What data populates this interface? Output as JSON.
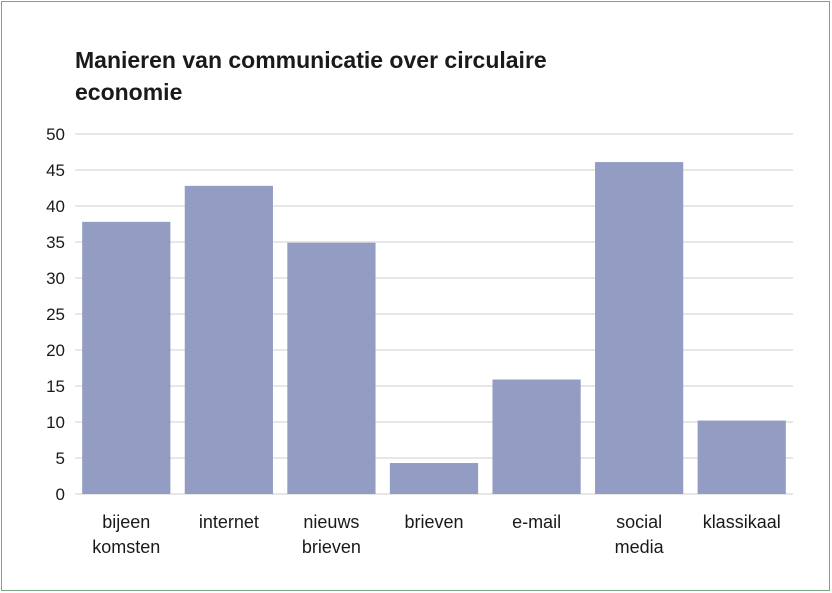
{
  "chart_data": {
    "type": "bar",
    "title": "Manieren van communicatie over circulaire economie",
    "xlabel": "",
    "ylabel": "",
    "ylim": [
      0,
      50
    ],
    "yticks": [
      0,
      5,
      10,
      15,
      20,
      25,
      30,
      35,
      40,
      45,
      50
    ],
    "grid": true,
    "categories": [
      [
        "bijeen",
        "komsten"
      ],
      [
        "internet"
      ],
      [
        "nieuws",
        "brieven"
      ],
      [
        "brieven"
      ],
      [
        "e-mail"
      ],
      [
        "social",
        "media"
      ],
      [
        "klassikaal"
      ]
    ],
    "values": [
      37.8,
      42.8,
      34.9,
      4.3,
      15.9,
      46.1,
      10.2
    ],
    "bar_color": "#939cc2",
    "grid_color": "#cfcfcf"
  }
}
